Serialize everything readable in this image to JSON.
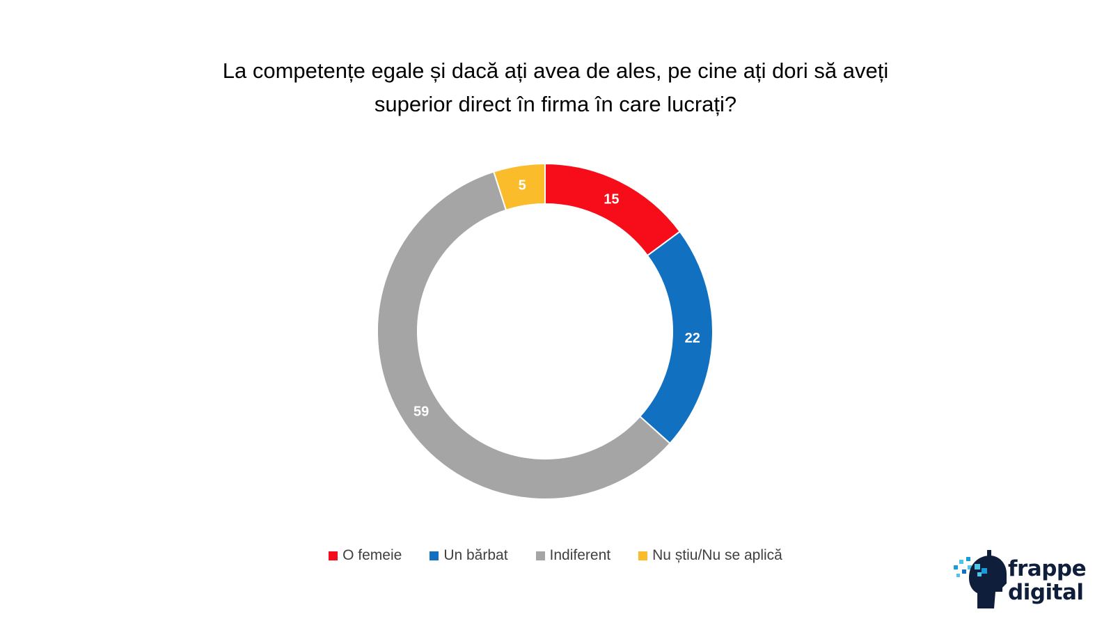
{
  "chart_data": {
    "type": "pie",
    "variant": "donut",
    "title_lines": [
      "La competențe egale și dacă ați avea de ales, pe cine ați dori să aveți",
      "superior direct în firma în care lucrați?"
    ],
    "categories": [
      "O femeie",
      "Un bărbat",
      "Indiferent",
      "Nu știu/Nu se aplică"
    ],
    "values": [
      15,
      22,
      59,
      5
    ],
    "value_labels": [
      "15",
      "22",
      "59",
      "5"
    ],
    "colors": [
      "#f70d1a",
      "#1170c0",
      "#a5a5a5",
      "#fbbc2c"
    ],
    "legend_position": "bottom"
  },
  "brand": {
    "line1": "frappe",
    "line2": "digital",
    "text_color": "#0f1e3a",
    "icon": "head-pixel-logo-icon"
  }
}
